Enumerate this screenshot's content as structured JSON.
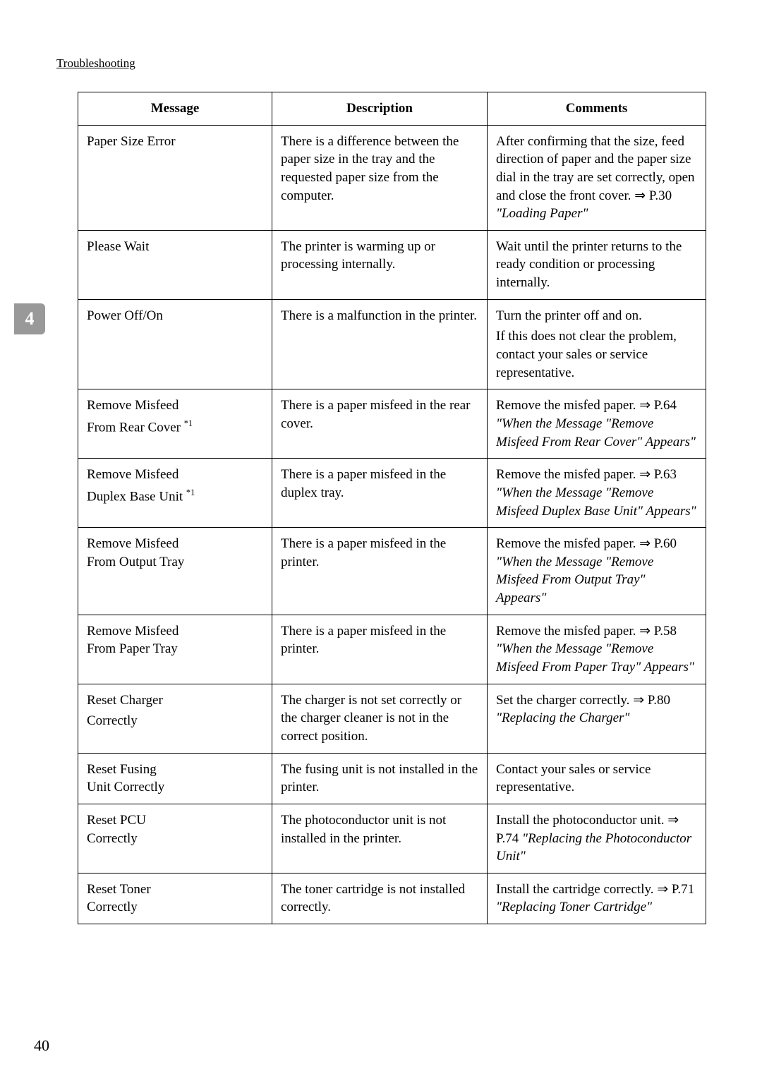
{
  "section_header": "Troubleshooting",
  "section_tab": "4",
  "page_number": "40",
  "table": {
    "headers": {
      "message": "Message",
      "description": "Description",
      "comments": "Comments"
    },
    "rows": {
      "r0": {
        "msg": "Paper Size Error",
        "desc": "There is a difference between the paper size in the tray and the requested paper size from the computer.",
        "com1": "After confirming that the size, feed direction of paper and the paper size dial in the tray are set correctly, open and close the front cover. ⇒ P.30 ",
        "com_italic": "\"Loading Paper\""
      },
      "r1": {
        "msg": "Please Wait",
        "desc": "The printer is warming up or processing internally.",
        "com": "Wait until the printer returns to the ready condition or processing internally."
      },
      "r2": {
        "msg": "Power Off/On",
        "desc": "There is a malfunction in the printer.",
        "com1": "Turn the printer off and on.",
        "com2": "If this does not clear the problem, contact your sales or service representative."
      },
      "r3": {
        "msg1": "Remove Misfeed",
        "msg2_pre": "From Rear Cover ",
        "msg2_sup": "*1",
        "desc": "There is a paper misfeed in the rear cover.",
        "com1": "Remove the misfed paper. ⇒ P.64 ",
        "com_italic": "\"When the Message \"Remove Misfeed From Rear Cover\" Appears\""
      },
      "r4": {
        "msg1": "Remove Misfeed",
        "msg2_pre": "Duplex Base Unit ",
        "msg2_sup": "*1",
        "desc": "There is a paper misfeed in the duplex tray.",
        "com1": "Remove the misfed paper. ⇒ P.63 ",
        "com_italic": "\"When the Message \"Remove Misfeed Duplex Base Unit\" Appears\""
      },
      "r5": {
        "msg1": "Remove Misfeed",
        "msg2": "From Output Tray",
        "desc": "There is a paper misfeed in the printer.",
        "com1": "Remove the misfed paper. ⇒ P.60 ",
        "com_italic": "\"When the Message \"Remove Misfeed From Output Tray\" Appears\""
      },
      "r6": {
        "msg1": "Remove Misfeed",
        "msg2": "From Paper Tray",
        "desc": "There is a paper misfeed in the printer.",
        "com1": "Remove the misfed paper. ⇒ P.58 ",
        "com_italic": "\"When the Message \"Remove Misfeed From Paper Tray\" Appears\""
      },
      "r7": {
        "msg1": "Reset Charger",
        "msg2": "Correctly",
        "desc": "The charger is not set correctly or the charger cleaner is not in the correct position.",
        "com1": "Set the charger correctly. ⇒ P.80 ",
        "com_italic": "\"Replacing the Charger\""
      },
      "r8": {
        "msg1": "Reset Fusing",
        "msg2": "Unit Correctly",
        "desc": "The fusing unit is not installed in the printer.",
        "com": "Contact your sales or service representative."
      },
      "r9": {
        "msg1": "Reset PCU",
        "msg2": "Correctly",
        "desc": "The photoconductor unit is not installed in the printer.",
        "com1": "Install the photoconductor unit. ⇒ P.74 ",
        "com_italic": "\"Replacing the Photoconductor Unit\""
      },
      "r10": {
        "msg1": "Reset Toner",
        "msg2": "Correctly",
        "desc": "The toner cartridge is not installed correctly.",
        "com1": "Install the cartridge correctly. ⇒ P.71 ",
        "com_italic": "\"Replacing Toner Cartridge\""
      }
    }
  }
}
